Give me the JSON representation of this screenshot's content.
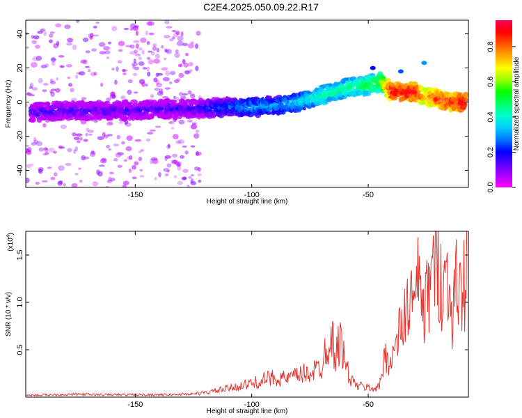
{
  "title": "C2E4.2025.050.09.22.R17",
  "chart_data": [
    {
      "type": "heatmap",
      "xlabel": "Height of straight line (km)",
      "ylabel": "Frequency (Hz)",
      "xlim": [
        -197,
        -7
      ],
      "ylim": [
        -50,
        48
      ],
      "xticks": [
        -150,
        -100,
        -50
      ],
      "yticks": [
        -40,
        -20,
        0,
        20,
        40
      ],
      "colorbar": {
        "label": "Normalized spectral amplitude",
        "range": [
          0,
          0.95
        ],
        "ticks": [
          0.0,
          0.2,
          0.4,
          0.6,
          0.8
        ],
        "colors": [
          "#ff00ff",
          "#aa00ff",
          "#5500ff",
          "#0000ff",
          "#0077ff",
          "#00ccff",
          "#00ffcc",
          "#00ff66",
          "#00ff00",
          "#99ff00",
          "#ffff00",
          "#ffaa00",
          "#ff5500",
          "#ff0000",
          "#ff0055"
        ]
      },
      "ridge": {
        "x": [
          -195,
          -180,
          -160,
          -140,
          -125,
          -110,
          -100,
          -90,
          -80,
          -70,
          -60,
          -50,
          -45,
          -40,
          -30,
          -25,
          -20,
          -15,
          -10,
          -8
        ],
        "y": [
          -6,
          -5,
          -5,
          -4,
          -4,
          -3,
          -3,
          -2,
          0,
          4,
          8,
          10,
          12,
          6,
          6,
          3,
          2,
          0,
          0,
          0
        ],
        "amplitude": [
          0.15,
          0.15,
          0.14,
          0.14,
          0.15,
          0.25,
          0.32,
          0.3,
          0.35,
          0.45,
          0.45,
          0.5,
          0.55,
          0.9,
          0.9,
          0.75,
          0.85,
          0.85,
          0.9,
          0.9
        ]
      },
      "scatter_region": {
        "x": [
          -197,
          -122
        ],
        "y": [
          -50,
          48
        ],
        "amplitude": [
          0.0,
          0.08
        ]
      },
      "outliers": [
        {
          "x": -48,
          "y": 20,
          "amplitude": 0.2
        },
        {
          "x": -36,
          "y": 18,
          "amplitude": 0.25
        },
        {
          "x": -26,
          "y": 23,
          "amplitude": 0.3
        }
      ]
    },
    {
      "type": "line",
      "xlabel": "Height of straight line (km)",
      "ylabel": "SNR (10 * v/v)",
      "ylabel_multiplier": "(x10",
      "ylabel_multiplier_exp": "4",
      "ylabel_multiplier_close": ")",
      "xlim": [
        -197,
        -7
      ],
      "ylim": [
        0,
        17500
      ],
      "xticks": [
        -150,
        -100,
        -50
      ],
      "yticks": [
        5000,
        10000,
        15000
      ],
      "ytick_labels": [
        "0.5",
        "1.0",
        "1.5"
      ],
      "color": "#e8322c",
      "series": [
        {
          "x": [
            -197,
            -185,
            -175,
            -165,
            -150,
            -135,
            -125,
            -120,
            -115,
            -110,
            -105,
            -100,
            -95,
            -90,
            -85,
            -80,
            -75,
            -70,
            -68,
            -66,
            -64,
            -62,
            -60,
            -58,
            -55,
            -50,
            -47,
            -45,
            -43,
            -40,
            -38,
            -35,
            -32,
            -30,
            -28,
            -26,
            -24,
            -22,
            -20,
            -18,
            -16,
            -14,
            -12,
            -10,
            -8,
            -7
          ],
          "y": [
            200,
            250,
            300,
            250,
            250,
            250,
            350,
            450,
            700,
            900,
            1200,
            1400,
            1800,
            2100,
            1900,
            2300,
            2600,
            3200,
            5500,
            6500,
            4500,
            6000,
            3800,
            2000,
            1200,
            1000,
            900,
            1200,
            4500,
            3800,
            5500,
            8000,
            10500,
            9500,
            13000,
            8500,
            11500,
            13500,
            14800,
            11500,
            12500,
            9000,
            12000,
            10500,
            13000,
            17500
          ]
        }
      ]
    }
  ]
}
